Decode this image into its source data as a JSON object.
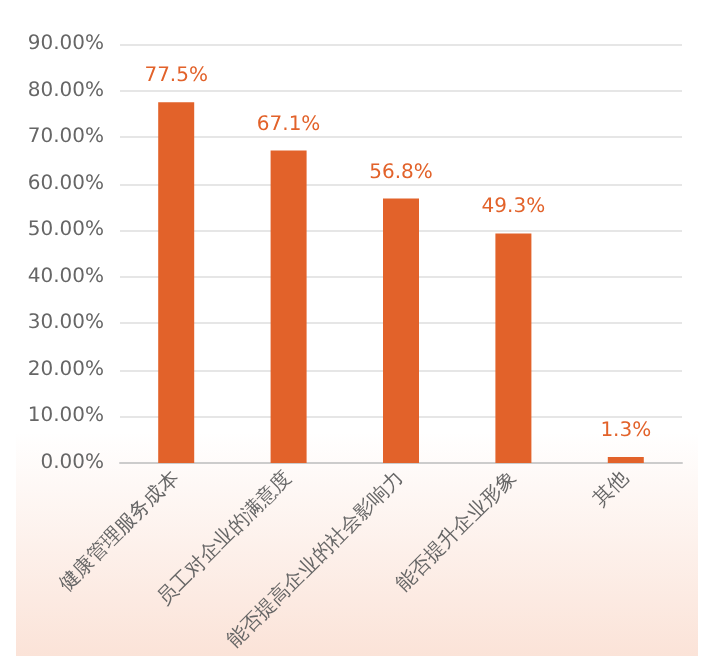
{
  "chart_data": {
    "type": "bar",
    "categories": [
      "健康管理服务成本",
      "员工对企业的满意度",
      "能否提高企业的社会影响力",
      "能否提升企业形象",
      "其他"
    ],
    "values": [
      77.5,
      67.1,
      56.8,
      49.3,
      1.3
    ],
    "value_labels": [
      "77.5%",
      "67.1%",
      "56.8%",
      "49.3%",
      "1.3%"
    ],
    "color": "#e2622a",
    "ylim": [
      0,
      90
    ],
    "yticks": [
      {
        "value": 0,
        "label": "0.00%"
      },
      {
        "value": 10,
        "label": "10.00%"
      },
      {
        "value": 20,
        "label": "20.00%"
      },
      {
        "value": 30,
        "label": "30.00%"
      },
      {
        "value": 40,
        "label": "40.00%"
      },
      {
        "value": 50,
        "label": "50.00%"
      },
      {
        "value": 60,
        "label": "60.00%"
      },
      {
        "value": 70,
        "label": "70.00%"
      },
      {
        "value": 80,
        "label": "80.00%"
      },
      {
        "value": 90,
        "label": "90.00%"
      }
    ],
    "grid": "y"
  }
}
